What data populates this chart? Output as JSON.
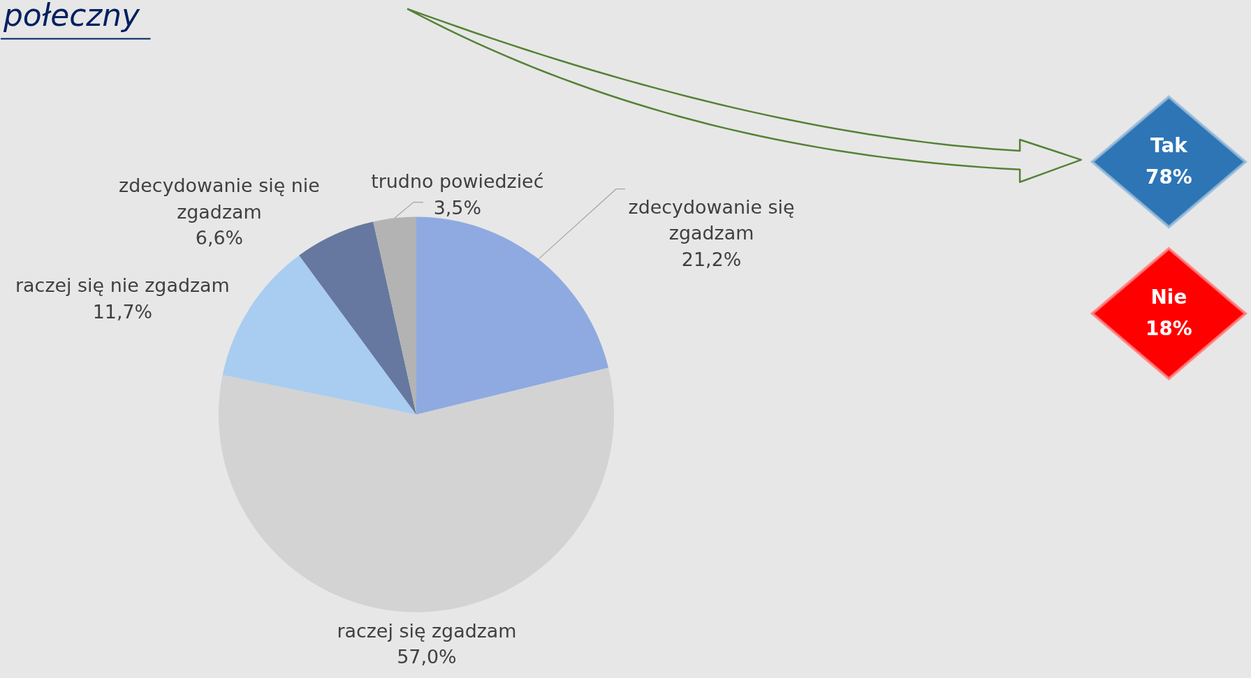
{
  "chart_data": [
    {
      "type": "pie",
      "title": "połeczny",
      "categories": [
        "zdecydowanie się zgadzam",
        "raczej się zgadzam",
        "raczej się nie zgadzam",
        "zdecydowanie się nie zgadzam",
        "trudno powiedzieć"
      ],
      "values": [
        21.2,
        57.0,
        11.7,
        6.6,
        3.5
      ],
      "colors": [
        "#8eaae0",
        "#d3d3d3",
        "#a8cdf1",
        "#66789f",
        "#b3b3b3"
      ],
      "value_labels": [
        "21,2%",
        "57,0%",
        "11,7%",
        "6,6%",
        "3,5%"
      ]
    },
    {
      "type": "other",
      "categories": [
        "Tak",
        "Nie"
      ],
      "values": [
        78,
        18
      ],
      "colors": [
        "#2e75b6",
        "#ff0000"
      ],
      "value_labels": [
        "78%",
        "18%"
      ]
    }
  ]
}
